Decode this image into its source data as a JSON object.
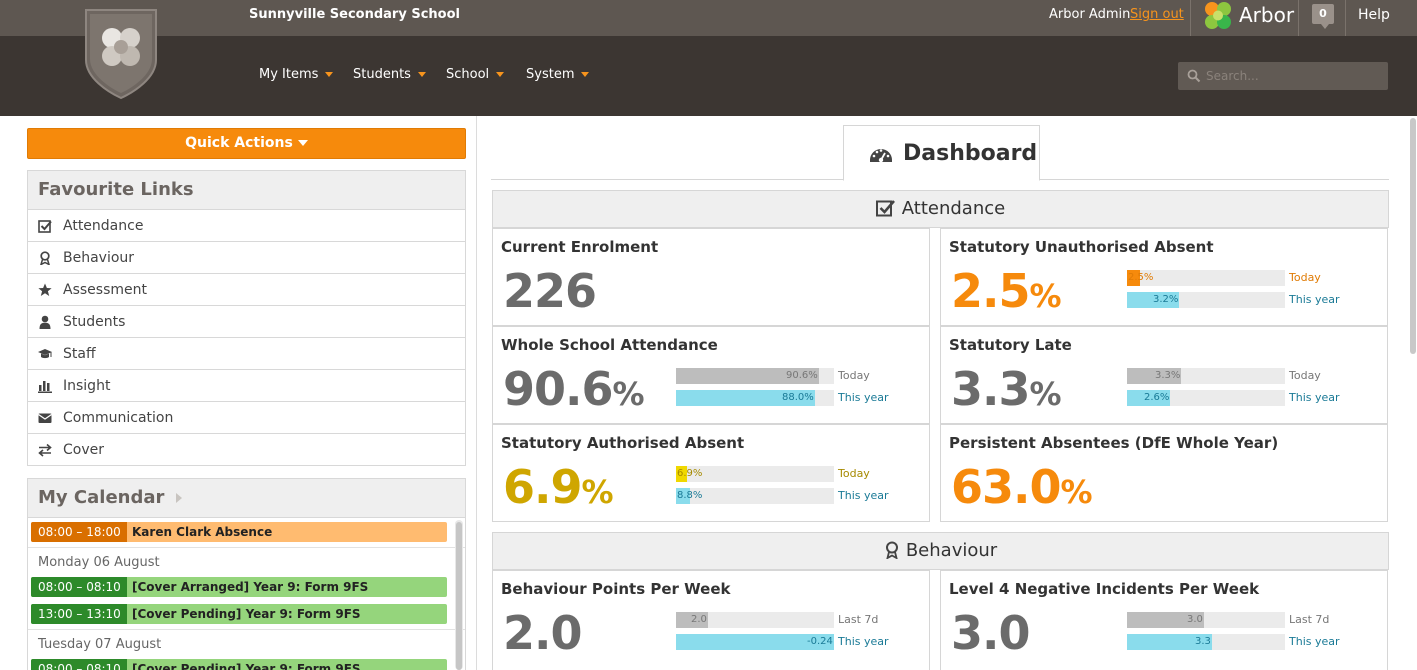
{
  "header": {
    "school_name": "Sunnyville Secondary School",
    "user_name": "Arbor Admin",
    "sign_out": "Sign out",
    "brand": "Arbor",
    "notifications": "0",
    "help": "Help",
    "accent_color": "#f7941d"
  },
  "menu": {
    "my_items": "My Items",
    "students": "Students",
    "school": "School",
    "system": "System"
  },
  "search": {
    "placeholder": "Search..."
  },
  "sidebar": {
    "quick_actions": "Quick Actions",
    "favourites_title": "Favourite Links",
    "favourites": [
      {
        "label": "Attendance",
        "icon": "check-square-icon"
      },
      {
        "label": "Behaviour",
        "icon": "award-icon"
      },
      {
        "label": "Assessment",
        "icon": "star-icon"
      },
      {
        "label": "Students",
        "icon": "user-icon"
      },
      {
        "label": "Staff",
        "icon": "graduation-cap-icon"
      },
      {
        "label": "Insight",
        "icon": "bar-chart-icon"
      },
      {
        "label": "Communication",
        "icon": "envelope-icon"
      },
      {
        "label": "Cover",
        "icon": "exchange-icon"
      }
    ],
    "calendar_title": "My Calendar",
    "calendar": {
      "event0": {
        "time": "08:00 – 18:00",
        "title": "Karen Clark Absence"
      },
      "day1": "Monday 06 August",
      "event1": {
        "time": "08:00 – 08:10",
        "title": "[Cover Arranged] Year 9: Form 9FS"
      },
      "event2": {
        "time": "13:00 – 13:10",
        "title": "[Cover Pending] Year 9: Form 9FS"
      },
      "day2": "Tuesday 07 August",
      "event3": {
        "time": "08:00 – 08:10",
        "title": "[Cover Pending] Year 9: Form 9FS"
      }
    }
  },
  "dashboard": {
    "tab_label": "Dashboard",
    "attendance": {
      "title": "Attendance",
      "current_enrolment": {
        "label": "Current Enrolment",
        "value": "226"
      },
      "unauthorised": {
        "label": "Statutory Unauthorised Absent",
        "value": "2.5",
        "unit": "%",
        "today": {
          "label": "Today",
          "value": "2.5%",
          "fraction": 0.08
        },
        "year": {
          "label": "This year",
          "value": "3.2%",
          "fraction": 0.33
        }
      },
      "whole_school": {
        "label": "Whole School Attendance",
        "value": "90.6",
        "unit": "%",
        "today": {
          "label": "Today",
          "value": "90.6%",
          "fraction": 0.906
        },
        "year": {
          "label": "This year",
          "value": "88.0%",
          "fraction": 0.88
        }
      },
      "late": {
        "label": "Statutory Late",
        "value": "3.3",
        "unit": "%",
        "today": {
          "label": "Today",
          "value": "3.3%",
          "fraction": 0.34
        },
        "year": {
          "label": "This year",
          "value": "2.6%",
          "fraction": 0.27
        }
      },
      "authorised": {
        "label": "Statutory Authorised Absent",
        "value": "6.9",
        "unit": "%",
        "today": {
          "label": "Today",
          "value": "6.9%",
          "fraction": 0.069
        },
        "year": {
          "label": "This year",
          "value": "8.8%",
          "fraction": 0.088
        }
      },
      "persistent": {
        "label": "Persistent Absentees (DfE Whole Year)",
        "value": "63.0",
        "unit": "%"
      }
    },
    "behaviour": {
      "title": "Behaviour",
      "points": {
        "label": "Behaviour Points Per Week",
        "value": "2.0",
        "last7": {
          "label": "Last 7d",
          "value": "2.0",
          "fraction": 0.2
        },
        "year": {
          "label": "This year",
          "value": "-0.24",
          "fraction": 1.0
        }
      },
      "level4": {
        "label": "Level 4 Negative Incidents Per Week",
        "value": "3.0",
        "last7": {
          "label": "Last 7d",
          "value": "3.0",
          "fraction": 0.49
        },
        "year": {
          "label": "This year",
          "value": "3.3",
          "fraction": 0.54
        }
      }
    }
  }
}
